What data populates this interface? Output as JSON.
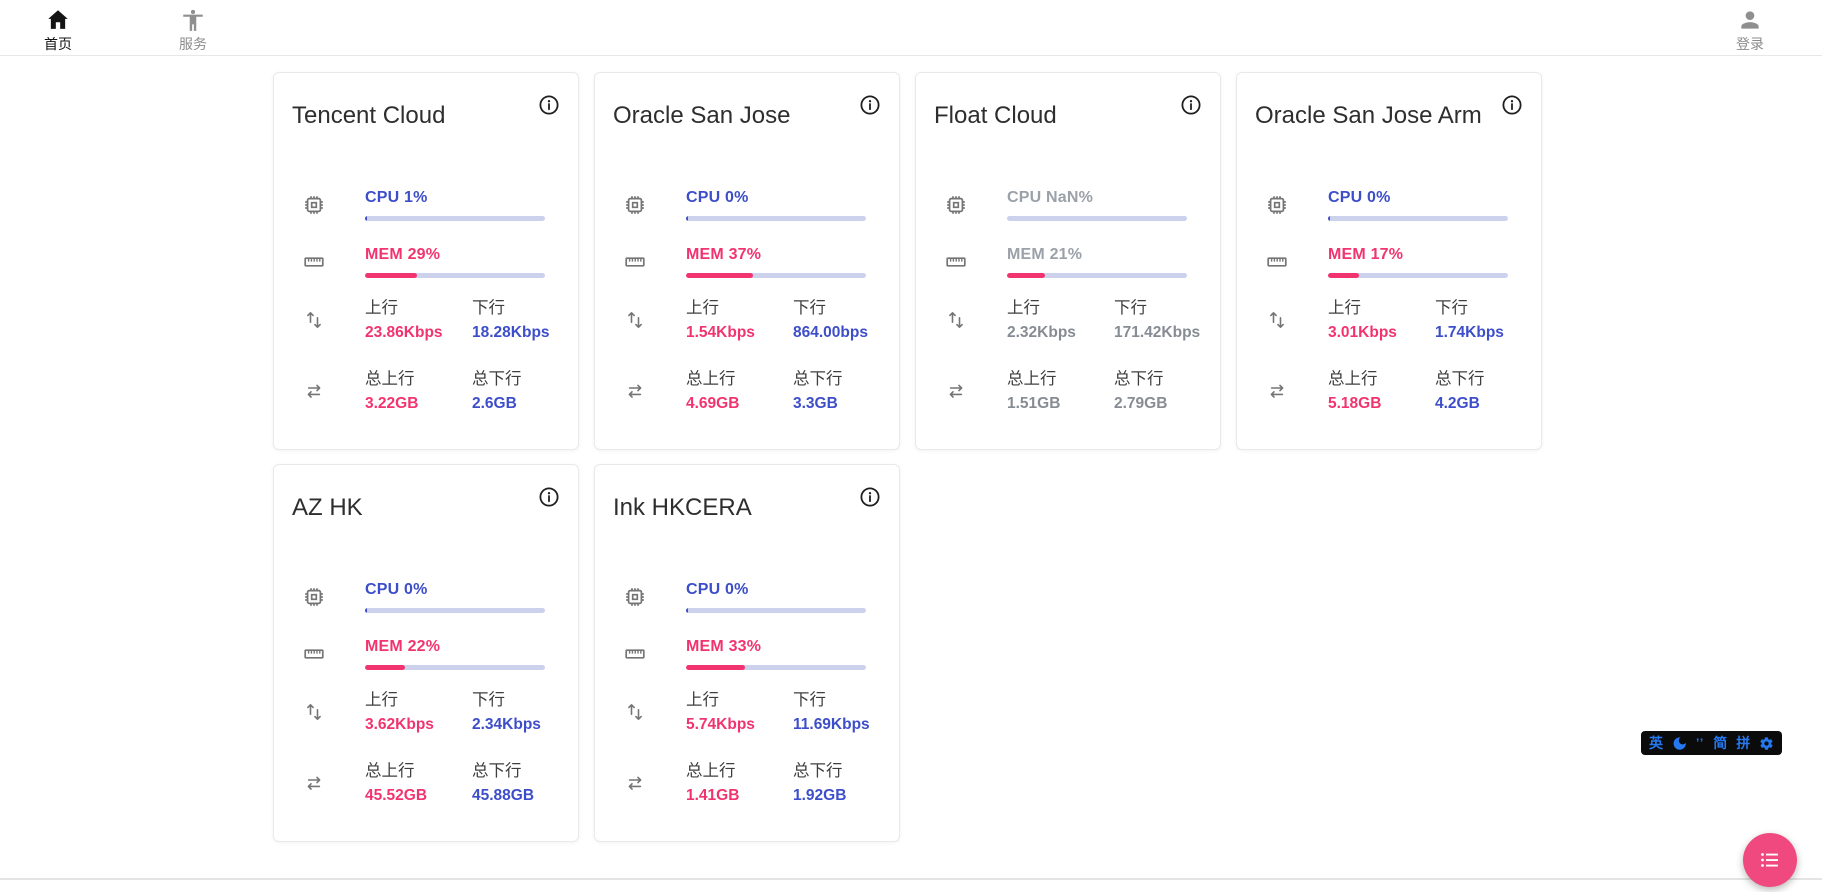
{
  "nav": {
    "home": {
      "label": "首页"
    },
    "services": {
      "label": "服务"
    },
    "login": {
      "label": "登录"
    }
  },
  "labels": {
    "up": "上行",
    "down": "下行",
    "total_up": "总上行",
    "total_down": "总下行"
  },
  "colors": {
    "cpu_blue": "#3d4eca",
    "mem_pink": "#f1346f",
    "bar_track": "#ccd2ec",
    "fab_pink": "#f0497f",
    "ime_blue": "#2678f0",
    "offline_gray": "#9aa1a9"
  },
  "servers": [
    {
      "name": "Tencent Cloud",
      "cpu_text": "CPU 1%",
      "cpu_pct": 1,
      "mem_text": "MEM 29%",
      "mem_pct": 29,
      "up": "23.86Kbps",
      "down": "18.28Kbps",
      "total_up": "3.22GB",
      "total_down": "2.6GB",
      "offline": false
    },
    {
      "name": "Oracle San Jose",
      "cpu_text": "CPU 0%",
      "cpu_pct": 0,
      "mem_text": "MEM 37%",
      "mem_pct": 37,
      "up": "1.54Kbps",
      "down": "864.00bps",
      "total_up": "4.69GB",
      "total_down": "3.3GB",
      "offline": false
    },
    {
      "name": "Float Cloud",
      "cpu_text": "CPU NaN%",
      "cpu_pct": null,
      "mem_text": "MEM 21%",
      "mem_pct": 21,
      "up": "2.32Kbps",
      "down": "171.42Kbps",
      "total_up": "1.51GB",
      "total_down": "2.79GB",
      "offline": true
    },
    {
      "name": "Oracle San Jose Arm",
      "cpu_text": "CPU 0%",
      "cpu_pct": 0,
      "mem_text": "MEM 17%",
      "mem_pct": 17,
      "up": "3.01Kbps",
      "down": "1.74Kbps",
      "total_up": "5.18GB",
      "total_down": "4.2GB",
      "offline": false
    },
    {
      "name": "AZ HK",
      "cpu_text": "CPU 0%",
      "cpu_pct": 0,
      "mem_text": "MEM 22%",
      "mem_pct": 22,
      "up": "3.62Kbps",
      "down": "2.34Kbps",
      "total_up": "45.52GB",
      "total_down": "45.88GB",
      "offline": false
    },
    {
      "name": "Ink HKCERA",
      "cpu_text": "CPU 0%",
      "cpu_pct": 0,
      "mem_text": "MEM 33%",
      "mem_pct": 33,
      "up": "5.74Kbps",
      "down": "11.69Kbps",
      "total_up": "1.41GB",
      "total_down": "1.92GB",
      "offline": false
    }
  ],
  "ime": {
    "english": "英",
    "punct": "’’",
    "simplified": "简",
    "pinyin": "拼"
  }
}
